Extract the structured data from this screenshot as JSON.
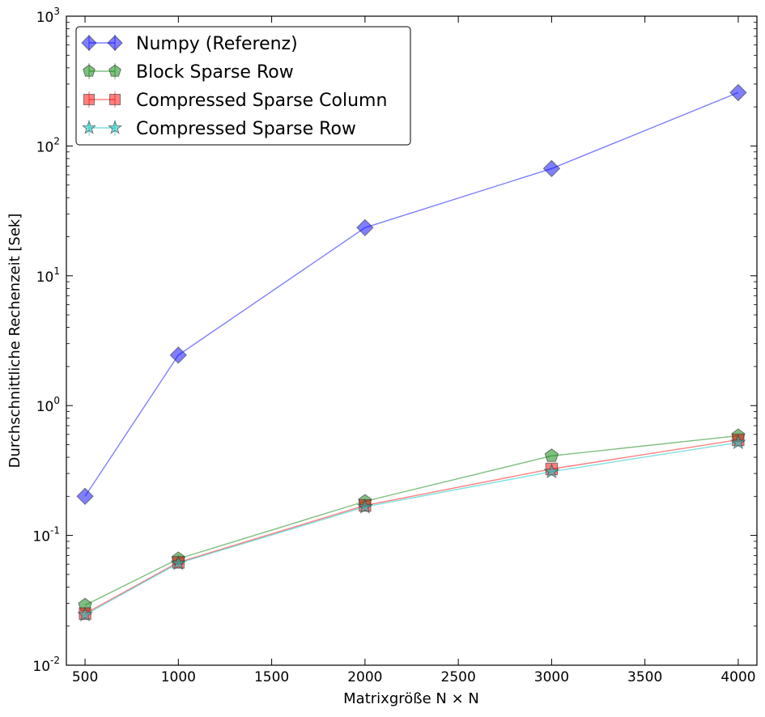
{
  "chart_data": {
    "type": "line",
    "xlabel": "Matrixgröße N × N",
    "ylabel": "Durchschnittliche Rechenzeit [Sek]",
    "xscale": "linear",
    "yscale": "log",
    "xlim": [
      400,
      4100
    ],
    "ylim": [
      0.01,
      1000
    ],
    "x_ticks": [
      500,
      1000,
      1500,
      2000,
      2500,
      3000,
      3500,
      4000
    ],
    "y_ticks": [
      {
        "value": 0.01,
        "base": "10",
        "exp": "-2"
      },
      {
        "value": 0.1,
        "base": "10",
        "exp": "-1"
      },
      {
        "value": 1,
        "base": "10",
        "exp": "0"
      },
      {
        "value": 10,
        "base": "10",
        "exp": "1"
      },
      {
        "value": 100,
        "base": "10",
        "exp": "2"
      },
      {
        "value": 1000,
        "base": "10",
        "exp": "3"
      }
    ],
    "grid": false,
    "legend_position": "top-left",
    "x": [
      500,
      1000,
      2000,
      3000,
      4000
    ],
    "series": [
      {
        "name": "Numpy (Referenz)",
        "marker": "diamond",
        "color": "#0000ff",
        "values": [
          0.2,
          2.45,
          23.5,
          67,
          258
        ]
      },
      {
        "name": "Block Sparse Row",
        "marker": "pentagon",
        "color": "#008000",
        "values": [
          0.029,
          0.066,
          0.183,
          0.41,
          0.585
        ]
      },
      {
        "name": "Compressed Sparse Column",
        "marker": "square",
        "color": "#ff0000",
        "values": [
          0.025,
          0.062,
          0.17,
          0.325,
          0.545
        ]
      },
      {
        "name": "Compressed Sparse Row",
        "marker": "star",
        "color": "#00bfbf",
        "values": [
          0.0245,
          0.061,
          0.166,
          0.31,
          0.52
        ]
      }
    ]
  }
}
